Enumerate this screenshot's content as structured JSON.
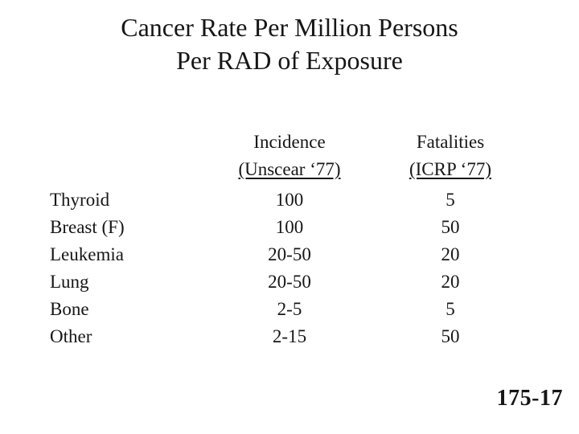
{
  "slide": {
    "title_line1": "Cancer Rate Per Million Persons",
    "title_line2": "Per RAD of Exposure",
    "slide_number": "175-17"
  },
  "table": {
    "header": {
      "incidence_label": "Incidence",
      "incidence_sub": "(Unscear ‘77)",
      "fatalities_label": "Fatalities",
      "fatalities_sub": "(ICRP ‘77)"
    },
    "rows": [
      {
        "label": "Thyroid",
        "incidence": "100",
        "fatalities": "5"
      },
      {
        "label": "Breast (F)",
        "incidence": "100",
        "fatalities": "50"
      },
      {
        "label": "Leukemia",
        "incidence": "20-50",
        "fatalities": "20"
      },
      {
        "label": "Lung",
        "incidence": "20-50",
        "fatalities": "20"
      },
      {
        "label": "Bone",
        "incidence": "2-5",
        "fatalities": "5"
      },
      {
        "label": "Other",
        "incidence": "2-15",
        "fatalities": "50"
      }
    ]
  },
  "colors": {
    "background": "#ffffff",
    "text": "#161616"
  }
}
